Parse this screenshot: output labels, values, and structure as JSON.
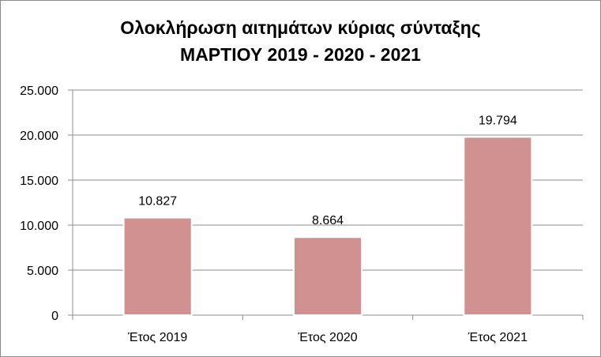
{
  "chart_data": {
    "type": "bar",
    "title": "Ολοκλήρωση αιτημάτων κύριας σύνταξης",
    "subtitle": "ΜΑΡΤΙΟΥ 2019 - 2020 - 2021",
    "categories": [
      "Έτος 2019",
      "Έτος 2020",
      "Έτος 2021"
    ],
    "values": [
      10827,
      8664,
      19794
    ],
    "value_labels": [
      "10.827",
      "8.664",
      "19.794"
    ],
    "yticks": [
      "0",
      "5.000",
      "10.000",
      "15.000",
      "20.000",
      "25.000"
    ],
    "ylim": [
      0,
      25000
    ],
    "grid": true,
    "legend": "none",
    "bar_color": "#d09190"
  }
}
